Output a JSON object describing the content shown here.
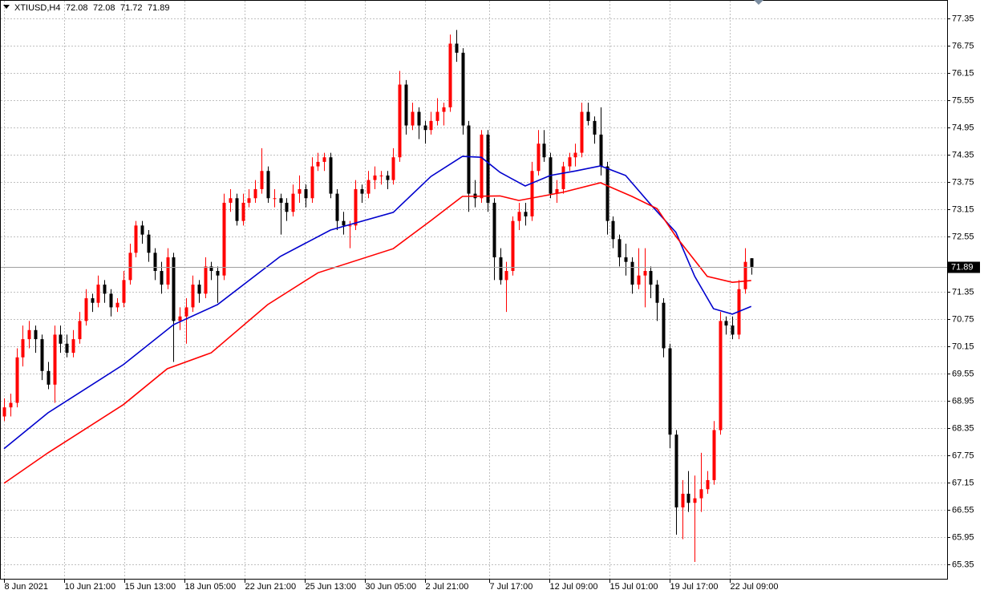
{
  "chart_data": {
    "type": "candlestick",
    "symbol": "XTIUSD,H4",
    "up_color": "#ff0000",
    "down_color": "#000000",
    "grid": true,
    "xlim": [
      -0.64,
      150.2
    ],
    "ylim": [
      65.03,
      77.76
    ],
    "xticks": [
      {
        "value": 0,
        "label": "8 Jun 2021"
      },
      {
        "value": 9.58,
        "label": "10 Jun 21:00"
      },
      {
        "value": 19.16,
        "label": "15 Jun 13:00"
      },
      {
        "value": 28.74,
        "label": "18 Jun 05:00"
      },
      {
        "value": 38.31,
        "label": "22 Jun 21:00"
      },
      {
        "value": 47.89,
        "label": "25 Jun 13:00"
      },
      {
        "value": 57.47,
        "label": "30 Jun 05:00"
      },
      {
        "value": 67.05,
        "label": "2 Jul 21:00"
      },
      {
        "value": 77.27,
        "label": "7 Jul 17:00"
      },
      {
        "value": 86.85,
        "label": "12 Jul 09:00"
      },
      {
        "value": 96.42,
        "label": "15 Jul 01:00"
      },
      {
        "value": 106.0,
        "label": "19 Jul 17:00"
      },
      {
        "value": 115.58,
        "label": "22 Jul 09:00"
      }
    ],
    "yticks": [
      77.35,
      76.75,
      76.15,
      75.55,
      74.95,
      74.35,
      73.75,
      73.15,
      72.55,
      71.35,
      70.75,
      70.15,
      69.55,
      68.95,
      68.35,
      67.75,
      67.15,
      66.55,
      65.95,
      65.35
    ],
    "candles": [
      [
        68.6,
        69.0,
        68.5,
        68.8
      ],
      [
        68.8,
        69.1,
        68.6,
        68.9
      ],
      [
        68.9,
        70.1,
        68.8,
        69.9
      ],
      [
        69.9,
        70.6,
        69.7,
        70.3
      ],
      [
        70.3,
        70.7,
        70.1,
        70.5
      ],
      [
        70.5,
        70.6,
        70.0,
        70.3
      ],
      [
        70.3,
        70.4,
        69.4,
        69.6
      ],
      [
        69.6,
        69.8,
        69.2,
        69.3
      ],
      [
        69.3,
        70.6,
        68.9,
        70.4
      ],
      [
        70.4,
        70.6,
        70.0,
        70.2
      ],
      [
        70.2,
        70.4,
        69.9,
        70.0
      ],
      [
        70.0,
        70.5,
        69.9,
        70.3
      ],
      [
        70.3,
        70.9,
        70.2,
        70.7
      ],
      [
        70.7,
        71.4,
        70.6,
        71.2
      ],
      [
        71.2,
        71.3,
        70.9,
        71.1
      ],
      [
        71.1,
        71.7,
        71.0,
        71.5
      ],
      [
        71.5,
        71.6,
        71.1,
        71.3
      ],
      [
        71.3,
        71.4,
        70.8,
        71.0
      ],
      [
        71.0,
        71.2,
        70.9,
        71.1
      ],
      [
        71.1,
        71.8,
        71.0,
        71.6
      ],
      [
        71.6,
        72.4,
        71.5,
        72.2
      ],
      [
        72.2,
        72.9,
        72.1,
        72.8
      ],
      [
        72.8,
        72.9,
        72.4,
        72.6
      ],
      [
        72.6,
        72.7,
        72.0,
        72.2
      ],
      [
        72.2,
        72.3,
        71.6,
        71.8
      ],
      [
        71.8,
        72.0,
        71.3,
        71.5
      ],
      [
        71.5,
        72.3,
        71.4,
        72.1
      ],
      [
        72.1,
        72.2,
        69.8,
        70.7
      ],
      [
        70.7,
        71.0,
        70.5,
        70.8
      ],
      [
        70.8,
        71.2,
        70.2,
        71.0
      ],
      [
        71.0,
        71.7,
        70.9,
        71.5
      ],
      [
        71.5,
        71.6,
        71.1,
        71.3
      ],
      [
        71.3,
        72.1,
        71.2,
        71.9
      ],
      [
        71.9,
        72.0,
        71.6,
        71.8
      ],
      [
        71.8,
        71.9,
        71.1,
        71.7
      ],
      [
        71.7,
        73.5,
        71.6,
        73.3
      ],
      [
        73.3,
        73.6,
        73.1,
        73.4
      ],
      [
        73.4,
        73.5,
        72.8,
        72.9
      ],
      [
        72.9,
        73.5,
        72.8,
        73.3
      ],
      [
        73.3,
        73.6,
        73.2,
        73.4
      ],
      [
        73.4,
        73.8,
        73.3,
        73.6
      ],
      [
        73.6,
        74.5,
        73.5,
        74.0
      ],
      [
        74.0,
        74.1,
        73.3,
        73.4
      ],
      [
        73.4,
        73.6,
        73.2,
        73.4
      ],
      [
        73.4,
        73.5,
        72.6,
        73.3
      ],
      [
        73.3,
        73.4,
        72.9,
        73.1
      ],
      [
        73.1,
        73.7,
        73.0,
        73.5
      ],
      [
        73.5,
        73.9,
        73.3,
        73.6
      ],
      [
        73.6,
        73.7,
        73.2,
        73.4
      ],
      [
        73.4,
        74.3,
        73.3,
        74.1
      ],
      [
        74.1,
        74.4,
        74.0,
        74.2
      ],
      [
        74.2,
        74.4,
        74.0,
        74.3
      ],
      [
        74.3,
        74.4,
        73.4,
        73.5
      ],
      [
        73.5,
        73.6,
        72.7,
        72.9
      ],
      [
        72.9,
        73.1,
        72.6,
        72.8
      ],
      [
        72.8,
        72.9,
        72.3,
        72.8
      ],
      [
        72.8,
        73.8,
        72.7,
        73.6
      ],
      [
        73.6,
        73.7,
        73.3,
        73.5
      ],
      [
        73.5,
        74.0,
        73.4,
        73.8
      ],
      [
        73.8,
        74.1,
        73.6,
        73.9
      ],
      [
        73.9,
        74.0,
        73.7,
        73.9
      ],
      [
        73.9,
        74.0,
        73.6,
        73.8
      ],
      [
        73.8,
        74.5,
        73.7,
        74.3
      ],
      [
        74.3,
        76.2,
        74.2,
        75.9
      ],
      [
        75.9,
        76.0,
        74.8,
        75.0
      ],
      [
        75.0,
        75.5,
        74.9,
        75.3
      ],
      [
        75.3,
        75.4,
        74.7,
        75.0
      ],
      [
        75.0,
        75.1,
        74.6,
        74.9
      ],
      [
        74.9,
        75.3,
        74.8,
        75.1
      ],
      [
        75.1,
        75.6,
        75.0,
        75.3
      ],
      [
        75.3,
        75.5,
        75.0,
        75.4
      ],
      [
        75.4,
        77.0,
        75.3,
        76.8
      ],
      [
        76.8,
        77.1,
        76.4,
        76.6
      ],
      [
        76.6,
        76.7,
        74.8,
        75.0
      ],
      [
        75.0,
        75.1,
        73.1,
        73.5
      ],
      [
        73.5,
        73.8,
        73.2,
        73.4
      ],
      [
        73.4,
        74.9,
        73.3,
        74.8
      ],
      [
        74.8,
        74.9,
        73.1,
        73.3
      ],
      [
        73.3,
        73.4,
        71.6,
        72.1
      ],
      [
        72.1,
        72.3,
        71.5,
        71.6
      ],
      [
        71.6,
        72.0,
        70.9,
        71.8
      ],
      [
        71.8,
        73.0,
        71.7,
        72.9
      ],
      [
        72.9,
        73.3,
        72.7,
        73.1
      ],
      [
        73.1,
        73.3,
        72.8,
        73.0
      ],
      [
        73.0,
        74.2,
        72.9,
        74.0
      ],
      [
        74.0,
        74.9,
        73.9,
        74.6
      ],
      [
        74.6,
        74.9,
        74.2,
        74.3
      ],
      [
        74.3,
        74.4,
        73.4,
        73.5
      ],
      [
        73.5,
        73.8,
        73.3,
        73.6
      ],
      [
        73.6,
        74.2,
        73.5,
        74.1
      ],
      [
        74.1,
        74.4,
        74.0,
        74.3
      ],
      [
        74.3,
        74.6,
        74.1,
        74.4
      ],
      [
        74.4,
        75.5,
        74.3,
        75.3
      ],
      [
        75.3,
        75.5,
        75.0,
        75.1
      ],
      [
        75.1,
        75.2,
        74.6,
        74.8
      ],
      [
        74.8,
        75.4,
        73.9,
        74.1
      ],
      [
        74.1,
        74.2,
        72.6,
        72.9
      ],
      [
        72.9,
        73.0,
        72.3,
        72.5
      ],
      [
        72.5,
        72.6,
        71.9,
        72.1
      ],
      [
        72.1,
        72.4,
        71.7,
        72.0
      ],
      [
        72.0,
        72.1,
        71.3,
        71.5
      ],
      [
        71.5,
        72.3,
        71.4,
        71.7
      ],
      [
        71.7,
        72.3,
        71.0,
        71.8
      ],
      [
        71.8,
        71.9,
        71.2,
        71.5
      ],
      [
        71.5,
        71.6,
        70.7,
        71.1
      ],
      [
        71.1,
        71.2,
        69.9,
        70.1
      ],
      [
        70.1,
        70.2,
        67.9,
        68.2
      ],
      [
        68.2,
        68.3,
        66.0,
        66.6
      ],
      [
        66.6,
        67.2,
        65.9,
        66.9
      ],
      [
        66.9,
        67.4,
        66.5,
        66.7
      ],
      [
        66.7,
        67.3,
        65.4,
        66.8
      ],
      [
        66.8,
        67.8,
        66.5,
        67.0
      ],
      [
        67.0,
        67.4,
        66.9,
        67.2
      ],
      [
        67.2,
        68.5,
        67.1,
        68.3
      ],
      [
        68.3,
        70.9,
        68.2,
        70.7
      ],
      [
        70.7,
        70.8,
        70.4,
        70.6
      ],
      [
        70.6,
        70.8,
        70.3,
        70.4
      ],
      [
        70.4,
        71.6,
        70.3,
        71.4
      ],
      [
        71.4,
        72.3,
        71.3,
        72.0
      ],
      [
        72.08,
        72.08,
        71.72,
        71.89
      ]
    ],
    "ma": [
      {
        "color": "#0000cd",
        "x": [
          0,
          7,
          19,
          27,
          34,
          44,
          52,
          62,
          68,
          73,
          76,
          79,
          83,
          87,
          91,
          95,
          99,
          103,
          107,
          110,
          113,
          116,
          119
        ],
        "values": [
          67.89,
          68.68,
          69.74,
          70.62,
          71.06,
          72.12,
          72.7,
          73.09,
          73.88,
          74.32,
          74.3,
          73.97,
          73.67,
          73.9,
          74.0,
          74.11,
          73.9,
          73.26,
          72.65,
          71.68,
          70.97,
          70.85,
          71.02
        ]
      },
      {
        "color": "#ff0000",
        "x": [
          0,
          7,
          19,
          26,
          33,
          42,
          50,
          62,
          68,
          73,
          79,
          82,
          89,
          95,
          100,
          104,
          107,
          112,
          116,
          119
        ],
        "values": [
          67.13,
          67.8,
          68.86,
          69.65,
          70.0,
          71.06,
          71.76,
          72.29,
          72.91,
          73.44,
          73.45,
          73.35,
          73.53,
          73.74,
          73.44,
          73.17,
          72.56,
          71.68,
          71.55,
          71.59
        ]
      }
    ]
  }
}
